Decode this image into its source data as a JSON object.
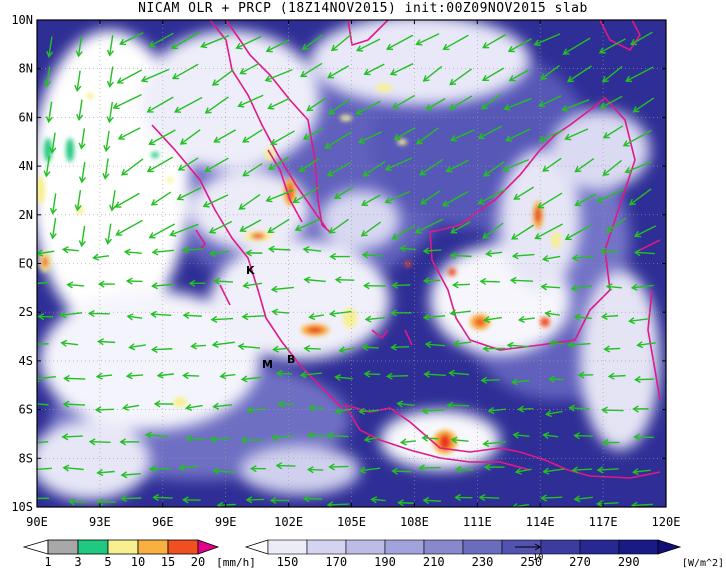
{
  "title": "NICAM OLR + PRCP (18Z14NOV2015) init:00Z09NOV2015 slab",
  "map": {
    "lat_labels": [
      "10N",
      "8N",
      "6N",
      "4N",
      "2N",
      "EQ",
      "2S",
      "4S",
      "6S",
      "8S",
      "10S"
    ],
    "lon_labels": [
      "90E",
      "93E",
      "96E",
      "99E",
      "102E",
      "105E",
      "108E",
      "111E",
      "114E",
      "117E",
      "120E"
    ],
    "place_labels": [
      "K",
      "B",
      "M"
    ],
    "lat_range": [
      -10,
      10
    ],
    "lon_range": [
      90,
      120
    ]
  },
  "precip_colorbar": {
    "ticks": [
      "1",
      "3",
      "5",
      "10",
      "15",
      "20"
    ],
    "unit": "[mm/h]",
    "colors": [
      "#ffffff",
      "#a8a8a8",
      "#20c880",
      "#f8f090",
      "#f8b040",
      "#f05020",
      "#e0008c"
    ]
  },
  "olr_colorbar": {
    "ticks": [
      "150",
      "170",
      "190",
      "210",
      "230",
      "250",
      "270",
      "290"
    ],
    "unit": "[W/m^2]",
    "colors": [
      "#ffffff",
      "#ececf8",
      "#d4d4f0",
      "#bcbce6",
      "#a2a2dc",
      "#8888cc",
      "#6c6cbe",
      "#5252b0",
      "#3c3ca0",
      "#282892",
      "#1a1a84",
      "#101078"
    ],
    "vector_ref": "10"
  }
}
